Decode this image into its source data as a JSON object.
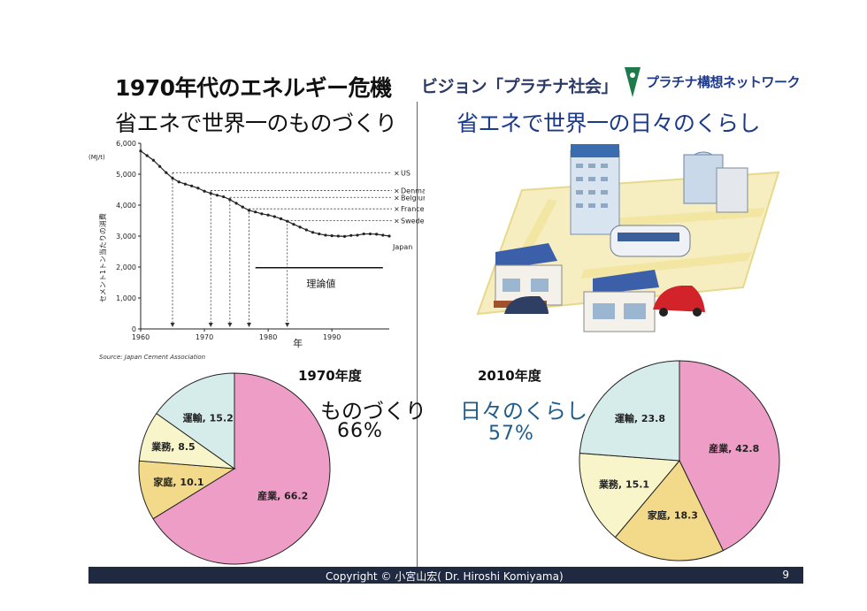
{
  "slide": {
    "title_main": "1970年代のエネルギー危機",
    "vision": "ビジョン「プラチナ社会」",
    "network": "プラチナ構想ネットワーク",
    "subtitle_left": "省エネで世界一のものづくり",
    "subtitle_right": "省エネで世界一の日々のくらし",
    "footer": "Copyright © 小宮山宏( Dr. Hiroshi Komiyama)",
    "page_number": "9"
  },
  "chart_data": [
    {
      "type": "line",
      "ylabel": "セメント1トン当たりの消費",
      "yunit": "(MJ/t)",
      "xlabel": "年",
      "ylim": [
        0,
        6000
      ],
      "xlim": [
        1960,
        1999
      ],
      "yticks": [
        "0",
        "1,000",
        "2,000",
        "3,000",
        "4,000",
        "5,000",
        "6,000"
      ],
      "xticks": [
        "1960",
        "1970",
        "1980",
        "1990"
      ],
      "source": "Source: Japan Cement Association",
      "series": [
        {
          "name": "Japan",
          "x": [
            1960,
            1961,
            1962,
            1963,
            1964,
            1965,
            1966,
            1967,
            1968,
            1969,
            1970,
            1971,
            1972,
            1973,
            1974,
            1975,
            1976,
            1977,
            1978,
            1979,
            1980,
            1981,
            1982,
            1983,
            1984,
            1985,
            1986,
            1987,
            1988,
            1989,
            1990,
            1991,
            1992,
            1993,
            1994,
            1995,
            1996,
            1997,
            1998,
            1999
          ],
          "y": [
            5750,
            5600,
            5450,
            5250,
            5050,
            4870,
            4750,
            4680,
            4620,
            4550,
            4450,
            4380,
            4320,
            4270,
            4180,
            4060,
            3940,
            3830,
            3780,
            3720,
            3680,
            3630,
            3560,
            3480,
            3380,
            3290,
            3200,
            3120,
            3070,
            3030,
            3010,
            3000,
            2990,
            3020,
            3030,
            3070,
            3070,
            3060,
            3030,
            3000
          ]
        }
      ],
      "reference_lines": [
        {
          "label": "US",
          "value": 5050
        },
        {
          "label": "Denmark",
          "value": 4470
        },
        {
          "label": "Belgium",
          "value": 4250
        },
        {
          "label": "France",
          "value": 3880
        },
        {
          "label": "Sweden",
          "value": 3500
        }
      ],
      "theoretical": {
        "label": "理論値",
        "value": 1980,
        "x_start": 1978,
        "x_end": 1998
      },
      "intersect_years": [
        1965,
        1971,
        1974,
        1977,
        1983
      ]
    },
    {
      "type": "pie",
      "title": "1970年度",
      "headline": "ものづくり",
      "headline_value": "66%",
      "slices": [
        {
          "label": "産業, 66.2",
          "value": 66.2,
          "color": "#ee9ec6"
        },
        {
          "label": "家庭, 10.1",
          "value": 10.1,
          "color": "#f3d98a"
        },
        {
          "label": "業務, 8.5",
          "value": 8.5,
          "color": "#f7f5c9"
        },
        {
          "label": "運輸, 15.2",
          "value": 15.2,
          "color": "#d6ecea"
        }
      ]
    },
    {
      "type": "pie",
      "title": "2010年度",
      "headline": "日々のくらし",
      "headline_value": "57%",
      "slices": [
        {
          "label": "産業, 42.8",
          "value": 42.8,
          "color": "#ee9ec6"
        },
        {
          "label": "家庭, 18.3",
          "value": 18.3,
          "color": "#f3d98a"
        },
        {
          "label": "業務, 15.1",
          "value": 15.1,
          "color": "#f7f5c9"
        },
        {
          "label": "運輸, 23.8",
          "value": 23.8,
          "color": "#d6ecea"
        }
      ]
    }
  ],
  "illustration": {
    "icon": "smart-city-illustration"
  }
}
